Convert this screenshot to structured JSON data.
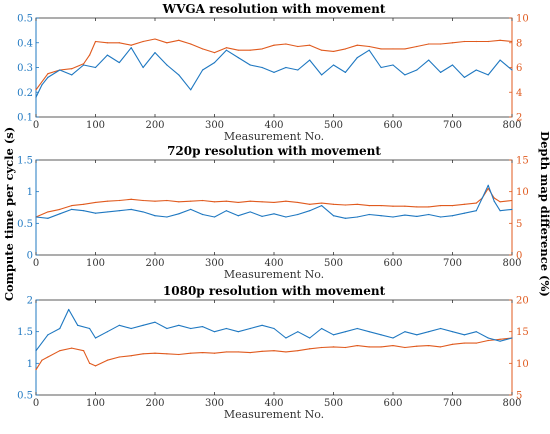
{
  "colors": {
    "compute": "#1f78c1",
    "depth": "#e05a1e",
    "axis": "#333333"
  },
  "ylabels": {
    "left": "Compute time per cycle (s)",
    "right": "Depth map difference (%)"
  },
  "chart_data": [
    {
      "type": "line",
      "title": "WVGA resolution with movement",
      "xlabel": "Measurement No.",
      "xlim": [
        0,
        800
      ],
      "xticks": [
        "0",
        "100",
        "200",
        "300",
        "400",
        "500",
        "600",
        "700",
        "800"
      ],
      "left_ylim": [
        0.1,
        0.5
      ],
      "left_yticks": [
        "0.1",
        "0.2",
        "0.3",
        "0.4",
        "0.5"
      ],
      "right_ylim": [
        2,
        10
      ],
      "right_yticks": [
        "2",
        "4",
        "6",
        "8",
        "10"
      ],
      "series": [
        {
          "axis": "left",
          "points": [
            [
              0,
              0.18
            ],
            [
              10,
              0.23
            ],
            [
              20,
              0.26
            ],
            [
              40,
              0.29
            ],
            [
              60,
              0.27
            ],
            [
              80,
              0.31
            ],
            [
              100,
              0.3
            ],
            [
              120,
              0.35
            ],
            [
              140,
              0.32
            ],
            [
              160,
              0.38
            ],
            [
              180,
              0.3
            ],
            [
              200,
              0.36
            ],
            [
              220,
              0.31
            ],
            [
              240,
              0.27
            ],
            [
              260,
              0.21
            ],
            [
              280,
              0.29
            ],
            [
              300,
              0.32
            ],
            [
              320,
              0.37
            ],
            [
              340,
              0.34
            ],
            [
              360,
              0.31
            ],
            [
              380,
              0.3
            ],
            [
              400,
              0.28
            ],
            [
              420,
              0.3
            ],
            [
              440,
              0.29
            ],
            [
              460,
              0.33
            ],
            [
              480,
              0.27
            ],
            [
              500,
              0.31
            ],
            [
              520,
              0.28
            ],
            [
              540,
              0.34
            ],
            [
              560,
              0.37
            ],
            [
              580,
              0.3
            ],
            [
              600,
              0.31
            ],
            [
              620,
              0.27
            ],
            [
              640,
              0.29
            ],
            [
              660,
              0.33
            ],
            [
              680,
              0.28
            ],
            [
              700,
              0.31
            ],
            [
              720,
              0.26
            ],
            [
              740,
              0.29
            ],
            [
              760,
              0.27
            ],
            [
              780,
              0.33
            ],
            [
              800,
              0.29
            ]
          ]
        },
        {
          "axis": "right",
          "points": [
            [
              0,
              4.2
            ],
            [
              20,
              5.5
            ],
            [
              40,
              5.8
            ],
            [
              60,
              5.9
            ],
            [
              80,
              6.3
            ],
            [
              90,
              7.0
            ],
            [
              100,
              8.1
            ],
            [
              120,
              8.0
            ],
            [
              140,
              8.0
            ],
            [
              160,
              7.8
            ],
            [
              180,
              8.1
            ],
            [
              200,
              8.3
            ],
            [
              220,
              8.0
            ],
            [
              240,
              8.2
            ],
            [
              260,
              7.9
            ],
            [
              280,
              7.5
            ],
            [
              300,
              7.2
            ],
            [
              320,
              7.6
            ],
            [
              340,
              7.4
            ],
            [
              360,
              7.4
            ],
            [
              380,
              7.5
            ],
            [
              400,
              7.8
            ],
            [
              420,
              7.9
            ],
            [
              440,
              7.7
            ],
            [
              460,
              7.8
            ],
            [
              480,
              7.4
            ],
            [
              500,
              7.3
            ],
            [
              520,
              7.5
            ],
            [
              540,
              7.8
            ],
            [
              560,
              7.7
            ],
            [
              580,
              7.5
            ],
            [
              600,
              7.5
            ],
            [
              620,
              7.5
            ],
            [
              640,
              7.7
            ],
            [
              660,
              7.9
            ],
            [
              680,
              7.9
            ],
            [
              700,
              8.0
            ],
            [
              720,
              8.1
            ],
            [
              740,
              8.1
            ],
            [
              760,
              8.1
            ],
            [
              780,
              8.2
            ],
            [
              800,
              8.1
            ]
          ]
        }
      ]
    },
    {
      "type": "line",
      "title": "720p resolution with movement",
      "xlabel": "Measurement No.",
      "xlim": [
        0,
        800
      ],
      "xticks": [
        "0",
        "100",
        "200",
        "300",
        "400",
        "500",
        "600",
        "700",
        "800"
      ],
      "left_ylim": [
        0,
        1.5
      ],
      "left_yticks": [
        "0",
        "0.5",
        "1",
        "1.5"
      ],
      "right_ylim": [
        0,
        15
      ],
      "right_yticks": [
        "0",
        "5",
        "10",
        "15"
      ],
      "series": [
        {
          "axis": "left",
          "points": [
            [
              0,
              0.6
            ],
            [
              20,
              0.58
            ],
            [
              40,
              0.65
            ],
            [
              60,
              0.72
            ],
            [
              80,
              0.7
            ],
            [
              100,
              0.66
            ],
            [
              120,
              0.68
            ],
            [
              140,
              0.7
            ],
            [
              160,
              0.72
            ],
            [
              180,
              0.68
            ],
            [
              200,
              0.62
            ],
            [
              220,
              0.6
            ],
            [
              240,
              0.65
            ],
            [
              260,
              0.72
            ],
            [
              280,
              0.64
            ],
            [
              300,
              0.6
            ],
            [
              320,
              0.7
            ],
            [
              340,
              0.62
            ],
            [
              360,
              0.68
            ],
            [
              380,
              0.61
            ],
            [
              400,
              0.65
            ],
            [
              420,
              0.6
            ],
            [
              440,
              0.64
            ],
            [
              460,
              0.7
            ],
            [
              480,
              0.78
            ],
            [
              500,
              0.62
            ],
            [
              520,
              0.58
            ],
            [
              540,
              0.6
            ],
            [
              560,
              0.64
            ],
            [
              580,
              0.62
            ],
            [
              600,
              0.6
            ],
            [
              620,
              0.63
            ],
            [
              640,
              0.61
            ],
            [
              660,
              0.64
            ],
            [
              680,
              0.6
            ],
            [
              700,
              0.62
            ],
            [
              720,
              0.66
            ],
            [
              740,
              0.7
            ],
            [
              750,
              0.9
            ],
            [
              760,
              1.1
            ],
            [
              770,
              0.85
            ],
            [
              780,
              0.7
            ],
            [
              800,
              0.72
            ]
          ]
        },
        {
          "axis": "right",
          "points": [
            [
              0,
              6.0
            ],
            [
              20,
              6.8
            ],
            [
              40,
              7.2
            ],
            [
              60,
              7.8
            ],
            [
              80,
              8.0
            ],
            [
              100,
              8.3
            ],
            [
              120,
              8.5
            ],
            [
              140,
              8.6
            ],
            [
              160,
              8.8
            ],
            [
              180,
              8.6
            ],
            [
              200,
              8.5
            ],
            [
              220,
              8.6
            ],
            [
              240,
              8.4
            ],
            [
              260,
              8.5
            ],
            [
              280,
              8.6
            ],
            [
              300,
              8.4
            ],
            [
              320,
              8.5
            ],
            [
              340,
              8.3
            ],
            [
              360,
              8.5
            ],
            [
              380,
              8.4
            ],
            [
              400,
              8.3
            ],
            [
              420,
              8.5
            ],
            [
              440,
              8.3
            ],
            [
              460,
              8.0
            ],
            [
              480,
              8.2
            ],
            [
              500,
              8.0
            ],
            [
              520,
              7.9
            ],
            [
              540,
              8.0
            ],
            [
              560,
              7.8
            ],
            [
              580,
              7.8
            ],
            [
              600,
              7.7
            ],
            [
              620,
              7.7
            ],
            [
              640,
              7.6
            ],
            [
              660,
              7.6
            ],
            [
              680,
              7.8
            ],
            [
              700,
              7.8
            ],
            [
              720,
              8.0
            ],
            [
              740,
              8.2
            ],
            [
              750,
              9.0
            ],
            [
              760,
              10.5
            ],
            [
              770,
              9.0
            ],
            [
              780,
              8.4
            ],
            [
              800,
              8.6
            ]
          ]
        }
      ]
    },
    {
      "type": "line",
      "title": "1080p resolution with movement",
      "xlabel": "Measurement No.",
      "xlim": [
        0,
        800
      ],
      "xticks": [
        "0",
        "100",
        "200",
        "300",
        "400",
        "500",
        "600",
        "700",
        "800"
      ],
      "left_ylim": [
        0.5,
        2
      ],
      "left_yticks": [
        "0.5",
        "1",
        "1.5",
        "2"
      ],
      "right_ylim": [
        5,
        20
      ],
      "right_yticks": [
        "5",
        "10",
        "15",
        "20"
      ],
      "series": [
        {
          "axis": "left",
          "points": [
            [
              0,
              1.2
            ],
            [
              20,
              1.45
            ],
            [
              40,
              1.55
            ],
            [
              55,
              1.85
            ],
            [
              70,
              1.6
            ],
            [
              90,
              1.55
            ],
            [
              100,
              1.4
            ],
            [
              120,
              1.5
            ],
            [
              140,
              1.6
            ],
            [
              160,
              1.55
            ],
            [
              180,
              1.6
            ],
            [
              200,
              1.65
            ],
            [
              220,
              1.55
            ],
            [
              240,
              1.6
            ],
            [
              260,
              1.55
            ],
            [
              280,
              1.58
            ],
            [
              300,
              1.5
            ],
            [
              320,
              1.55
            ],
            [
              340,
              1.5
            ],
            [
              360,
              1.55
            ],
            [
              380,
              1.6
            ],
            [
              400,
              1.55
            ],
            [
              420,
              1.4
            ],
            [
              440,
              1.5
            ],
            [
              460,
              1.4
            ],
            [
              480,
              1.55
            ],
            [
              500,
              1.45
            ],
            [
              520,
              1.5
            ],
            [
              540,
              1.55
            ],
            [
              560,
              1.5
            ],
            [
              580,
              1.45
            ],
            [
              600,
              1.4
            ],
            [
              620,
              1.5
            ],
            [
              640,
              1.45
            ],
            [
              660,
              1.5
            ],
            [
              680,
              1.55
            ],
            [
              700,
              1.5
            ],
            [
              720,
              1.45
            ],
            [
              740,
              1.5
            ],
            [
              760,
              1.4
            ],
            [
              780,
              1.35
            ],
            [
              800,
              1.4
            ]
          ]
        },
        {
          "axis": "right",
          "points": [
            [
              0,
              9.0
            ],
            [
              10,
              10.5
            ],
            [
              20,
              11.0
            ],
            [
              40,
              12.0
            ],
            [
              60,
              12.4
            ],
            [
              80,
              12.0
            ],
            [
              90,
              10.0
            ],
            [
              100,
              9.6
            ],
            [
              120,
              10.5
            ],
            [
              140,
              11.0
            ],
            [
              160,
              11.2
            ],
            [
              180,
              11.5
            ],
            [
              200,
              11.6
            ],
            [
              220,
              11.5
            ],
            [
              240,
              11.4
            ],
            [
              260,
              11.6
            ],
            [
              280,
              11.7
            ],
            [
              300,
              11.6
            ],
            [
              320,
              11.8
            ],
            [
              340,
              11.8
            ],
            [
              360,
              11.7
            ],
            [
              380,
              11.9
            ],
            [
              400,
              12.0
            ],
            [
              420,
              11.8
            ],
            [
              440,
              12.0
            ],
            [
              460,
              12.3
            ],
            [
              480,
              12.5
            ],
            [
              500,
              12.6
            ],
            [
              520,
              12.5
            ],
            [
              540,
              12.8
            ],
            [
              560,
              12.6
            ],
            [
              580,
              12.6
            ],
            [
              600,
              12.8
            ],
            [
              620,
              12.5
            ],
            [
              640,
              12.7
            ],
            [
              660,
              12.8
            ],
            [
              680,
              12.6
            ],
            [
              700,
              13.0
            ],
            [
              720,
              13.2
            ],
            [
              740,
              13.2
            ],
            [
              760,
              13.6
            ],
            [
              780,
              13.8
            ],
            [
              800,
              14.0
            ]
          ]
        }
      ]
    }
  ]
}
